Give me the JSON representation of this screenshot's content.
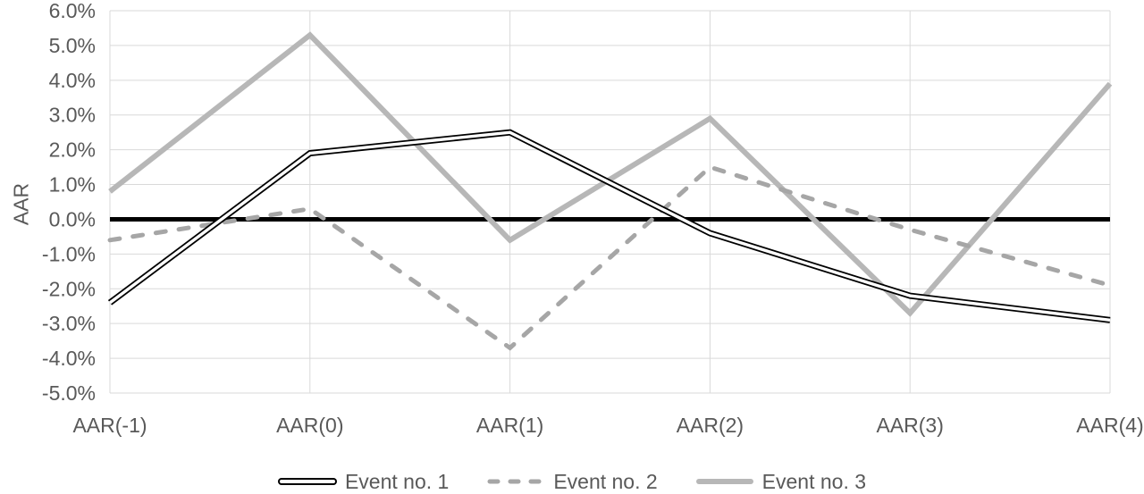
{
  "chart_data": {
    "type": "line",
    "title": "",
    "xlabel": "",
    "ylabel": "AAR",
    "categories": [
      "AAR(-1)",
      "AAR(0)",
      "AAR(1)",
      "AAR(2)",
      "AAR(3)",
      "AAR(4)"
    ],
    "series": [
      {
        "name": "Event no. 1",
        "style": "double-black",
        "color": "#000000",
        "values": [
          -2.4,
          1.9,
          2.5,
          -0.4,
          -2.2,
          -2.9
        ]
      },
      {
        "name": "Event no. 2",
        "style": "dashed",
        "color": "#a6a6a6",
        "values": [
          -0.6,
          0.3,
          -3.7,
          1.5,
          -0.3,
          -1.9
        ]
      },
      {
        "name": "Event no. 3",
        "style": "solid",
        "color": "#b7b7b7",
        "values": [
          0.8,
          5.3,
          -0.6,
          2.9,
          -2.7,
          3.9
        ]
      }
    ],
    "ylim": [
      -5,
      6
    ],
    "ytick_step": 1,
    "yticks": [
      "6.0%",
      "5.0%",
      "4.0%",
      "3.0%",
      "2.0%",
      "1.0%",
      "0.0%",
      "-1.0%",
      "-2.0%",
      "-3.0%",
      "-4.0%",
      "-5.0%"
    ],
    "grid": true,
    "zero_line": true,
    "legend_position": "bottom-center",
    "colors": {
      "text": "#595959",
      "gridline": "#d9d9d9",
      "zero_line": "#000000",
      "background": "#ffffff"
    }
  }
}
